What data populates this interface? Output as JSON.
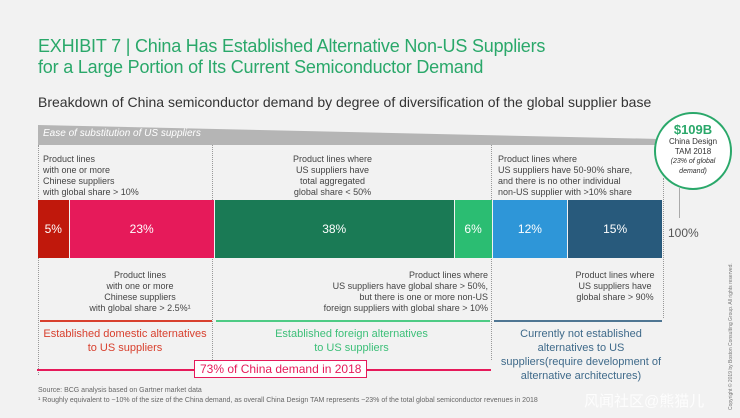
{
  "title_line1": "EXHIBIT 7 | China Has Established Alternative Non-US Suppliers",
  "title_line2": "for a Large Portion of Its Current Semiconductor Demand",
  "subtitle": "Breakdown of China semiconductor demand by degree of diversification of the global supplier base",
  "band_label": "Ease of substitution of US suppliers",
  "circle": {
    "value": "$109B",
    "line1": "China Design",
    "line2": "TAM 2018",
    "line3": "(23% of global",
    "line4": "demand)"
  },
  "total_label": "100%",
  "top_labels": {
    "a": [
      "Product lines",
      "with one or more",
      "Chinese suppliers",
      "with global share > 10%"
    ],
    "c": [
      "Product lines where",
      "US suppliers have",
      "total aggregated",
      "global share < 50%"
    ],
    "e": [
      "Product lines where",
      "US suppliers have 50-90% share,",
      "and there is no other individual",
      "non-US supplier with >10% share"
    ]
  },
  "bottom_labels": {
    "b": [
      "Product lines",
      "with one or more",
      "Chinese suppliers",
      "with global share > 2.5%¹"
    ],
    "d": [
      "Product lines where",
      "US suppliers have global share > 50%,",
      "but there is one or more non-US",
      "foreign suppliers with global share > 10%"
    ],
    "f": [
      "Product lines where",
      "US suppliers have",
      "global share > 90%"
    ]
  },
  "groups": {
    "domestic": [
      "Established domestic alternatives",
      "to US suppliers"
    ],
    "foreign": [
      "Established foreign alternatives",
      "to US suppliers"
    ],
    "none": [
      "Currently not established",
      "alternatives to US",
      "suppliers(require development of",
      "alternative architectures)"
    ]
  },
  "summary": "73% of China demand in 2018",
  "source": "Source: BCG analysis based on Gartner market data",
  "footnote": "¹ Roughly equivalent to ~10% of the size of the China demand, as overall China Design TAM represents ~23% of the total global semiconductor revenues in 2018",
  "copyright": "Copyright © 2019 by Boston Consulting Group. All rights reserved.",
  "watermark": "风闻社区@熊猫儿",
  "chart_data": {
    "type": "bar",
    "orientation": "horizontal-stacked",
    "unit": "%",
    "categories": [
      "5%",
      "23%",
      "38%",
      "6%",
      "12%",
      "15%"
    ],
    "values": [
      5,
      23,
      38,
      6,
      12,
      15
    ],
    "colors": [
      "#c0180c",
      "#e61a5a",
      "#1a7a55",
      "#2bbd72",
      "#2e96d8",
      "#285a7c"
    ]
  }
}
